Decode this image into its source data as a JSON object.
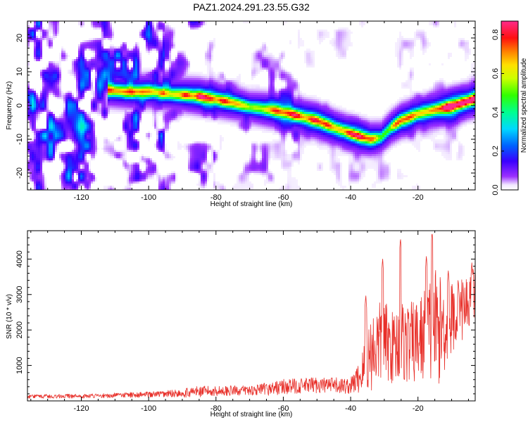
{
  "figure_title": "PAZ1.2024.291.23.55.G32",
  "chart_data": [
    {
      "type": "heatmap",
      "xlabel": "Height of straight line (km)",
      "ylabel": "Frequency (Hz)",
      "xlim": [
        -136,
        -3
      ],
      "ylim": [
        -25,
        25
      ],
      "x_ticks": [
        -120,
        -100,
        -80,
        -60,
        -40,
        -20
      ],
      "y_ticks": [
        -20,
        -10,
        0,
        10,
        20
      ],
      "colorbar": {
        "label": "Normalized spectral amplitude",
        "range": [
          0.0,
          0.87
        ],
        "ticks": [
          "0.0",
          "0.2",
          "0.4",
          "0.6",
          "0.8"
        ],
        "colormap": "rainbow: white-violet-blue-cyan-green-yellow-orange-red-magenta"
      },
      "ridge": {
        "description": "Doppler frequency of peak spectral amplitude versus height",
        "x": [
          -112,
          -105,
          -100,
          -95,
          -90,
          -85,
          -80,
          -75,
          -70,
          -65,
          -60,
          -55,
          -50,
          -45,
          -40,
          -37,
          -34,
          -31,
          -28,
          -25,
          -20,
          -15,
          -10,
          -5,
          -3
        ],
        "y": [
          4.5,
          4.0,
          4.3,
          3.5,
          3.2,
          2.7,
          1.8,
          0.8,
          -0.5,
          -1.2,
          -2.0,
          -3.2,
          -4.5,
          -6.5,
          -8.3,
          -9.3,
          -10.0,
          -9.5,
          -6.5,
          -4.5,
          -2.5,
          -1.3,
          -0.3,
          1.3,
          2.0
        ],
        "amplitude": [
          0.45,
          0.5,
          0.5,
          0.45,
          0.5,
          0.6,
          0.55,
          0.5,
          0.4,
          0.5,
          0.55,
          0.55,
          0.65,
          0.55,
          0.55,
          0.6,
          0.5,
          0.4,
          0.45,
          0.55,
          0.5,
          0.55,
          0.8,
          0.6,
          0.7
        ]
      }
    },
    {
      "type": "line",
      "xlabel": "Height of straight line (km)",
      "ylabel": "SNR (10 * v/v)",
      "xlim": [
        -136,
        -3
      ],
      "ylim": [
        0,
        4800
      ],
      "x_ticks": [
        -120,
        -100,
        -80,
        -60,
        -40,
        -20
      ],
      "y_ticks": [
        1000,
        2000,
        3000,
        4000
      ],
      "color": "#e8302a",
      "envelope": {
        "x": [
          -136,
          -120,
          -100,
          -90,
          -86,
          -80,
          -70,
          -65,
          -60,
          -55,
          -50,
          -45,
          -40,
          -37,
          -35,
          -33,
          -30,
          -28,
          -25,
          -22,
          -20,
          -17,
          -15,
          -13,
          -10,
          -7,
          -5,
          -3
        ],
        "mean": [
          130,
          135,
          180,
          220,
          260,
          280,
          300,
          330,
          400,
          420,
          450,
          430,
          420,
          700,
          1200,
          1500,
          1700,
          1500,
          1700,
          1600,
          1700,
          1900,
          2100,
          2000,
          2300,
          2600,
          2800,
          2900
        ],
        "spread": [
          55,
          60,
          80,
          120,
          160,
          140,
          140,
          180,
          220,
          220,
          230,
          230,
          230,
          500,
          1000,
          1200,
          1200,
          1000,
          1200,
          1200,
          1200,
          1500,
          1800,
          1400,
          1100,
          900,
          800,
          900
        ]
      },
      "peaks": [
        {
          "x": -35.5,
          "y": 3000
        },
        {
          "x": -30.5,
          "y": 4020
        },
        {
          "x": -25.2,
          "y": 4600
        },
        {
          "x": -17.5,
          "y": 4100
        },
        {
          "x": -15.8,
          "y": 4780
        },
        {
          "x": -11.0,
          "y": 3700
        },
        {
          "x": -8.0,
          "y": 3350
        },
        {
          "x": -4.0,
          "y": 3900
        }
      ]
    }
  ]
}
